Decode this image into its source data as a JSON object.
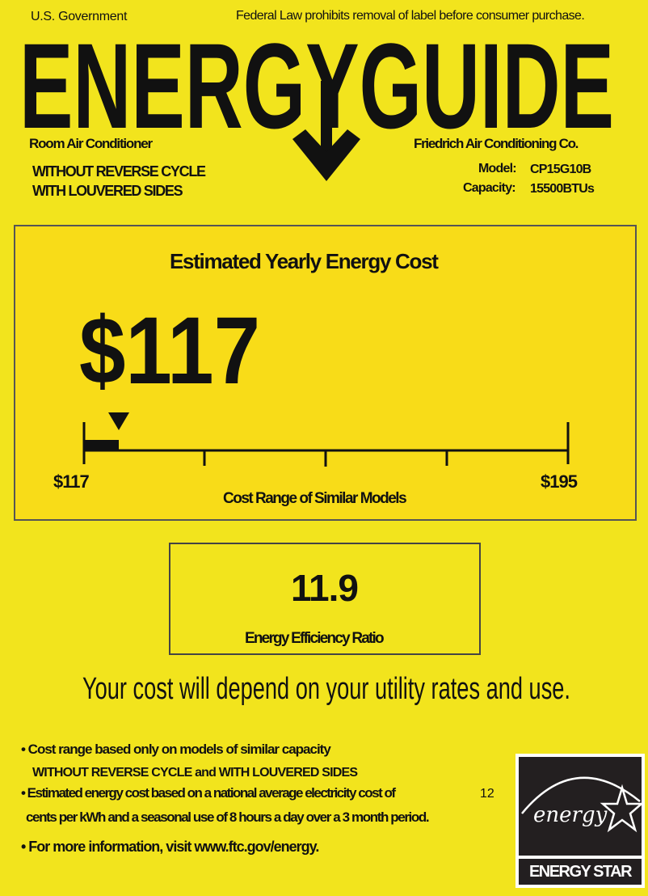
{
  "header": {
    "government": "U.S. Government",
    "legal_notice": "Federal Law prohibits removal of label before consumer purchase.",
    "title": "ENERGYGUIDE",
    "product_type": "Room Air Conditioner",
    "features": [
      "WITHOUT REVERSE CYCLE",
      "WITH LOUVERED SIDES"
    ],
    "manufacturer": "Friedrich Air Conditioning Co.",
    "model_label": "Model:",
    "model": "CP15G10B",
    "capacity_label": "Capacity:",
    "capacity": "15500BTUs"
  },
  "cost": {
    "heading": "Estimated Yearly Energy Cost",
    "value": "$117",
    "range_min_label": "$117",
    "range_max_label": "$195",
    "range_min": 117,
    "range_max": 195,
    "current": 117,
    "range_caption": "Cost Range of Similar Models"
  },
  "efficiency": {
    "value": "11.9",
    "label": "Energy Efficiency Ratio"
  },
  "tagline": "Your cost will depend on your utility rates and use.",
  "notes": {
    "line1": "• Cost range based only on models of similar capacity",
    "line1b": "WITHOUT REVERSE CYCLE and WITH LOUVERED SIDES",
    "line2": "• Estimated energy cost based on a national average electricity cost of",
    "line2_value": "12",
    "line2b": "cents per kWh and a seasonal use of 8 hours a day over a 3 month period.",
    "line3": "• For more information, visit www.ftc.gov/energy."
  },
  "energy_star": {
    "script": "energy",
    "label": "ENERGY STAR"
  },
  "colors": {
    "background": "#f2e41d",
    "cost_box": "#f8dc18",
    "text": "#111111"
  }
}
